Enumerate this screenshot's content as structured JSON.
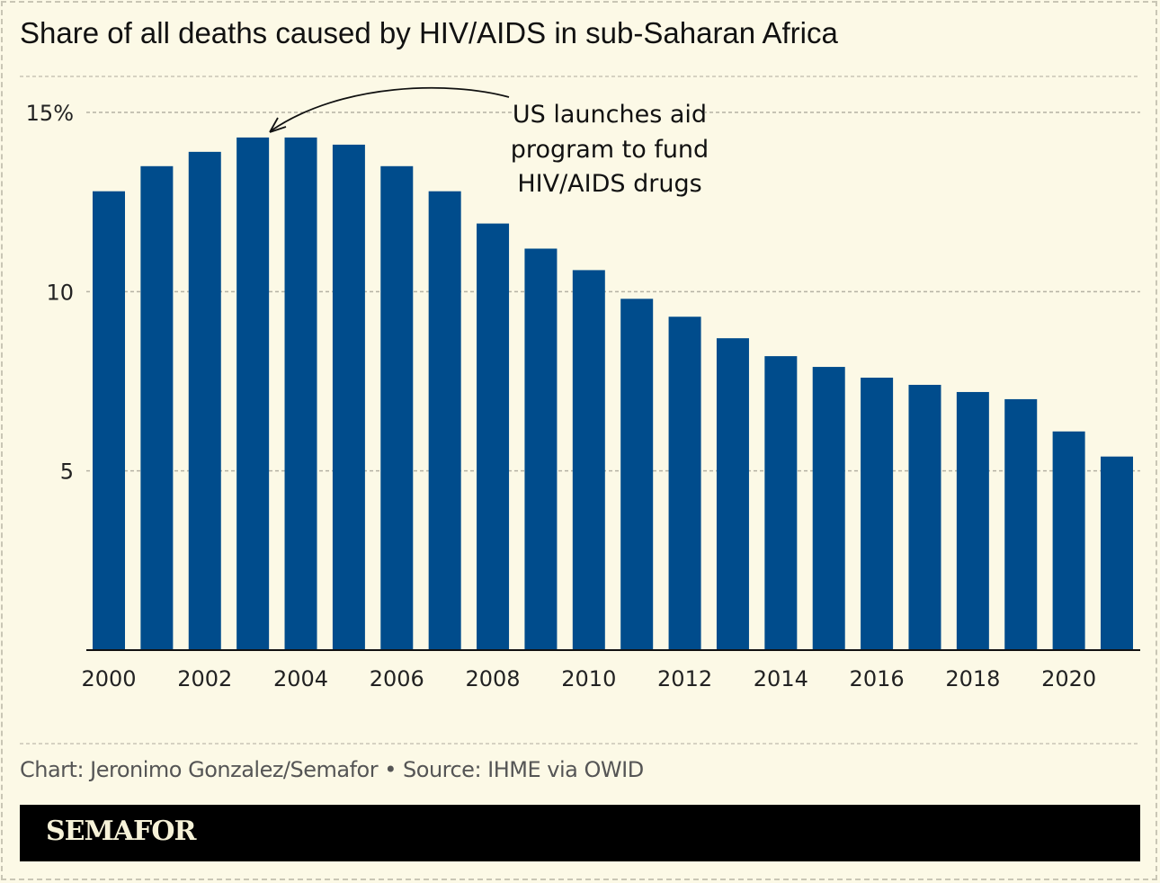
{
  "chart_data": {
    "type": "bar",
    "title": "Share of all deaths caused by HIV/AIDS in sub-Saharan Africa",
    "categories": [
      "2000",
      "2001",
      "2002",
      "2003",
      "2004",
      "2005",
      "2006",
      "2007",
      "2008",
      "2009",
      "2010",
      "2011",
      "2012",
      "2013",
      "2014",
      "2015",
      "2016",
      "2017",
      "2018",
      "2019",
      "2020",
      "2021"
    ],
    "values": [
      12.8,
      13.5,
      13.9,
      14.3,
      14.3,
      14.1,
      13.5,
      12.8,
      11.9,
      11.2,
      10.6,
      9.8,
      9.3,
      8.7,
      8.2,
      7.9,
      7.6,
      7.4,
      7.2,
      7.0,
      6.1,
      5.4
    ],
    "x_tick_labels": [
      "2000",
      "2002",
      "2004",
      "2006",
      "2008",
      "2010",
      "2012",
      "2014",
      "2016",
      "2018",
      "2020"
    ],
    "y_ticks": [
      5,
      10,
      15
    ],
    "y_tick_labels": [
      "5",
      "10",
      "15%"
    ],
    "ylim": [
      0,
      15
    ],
    "grid": "horizontal dashed",
    "bar_color": "#004c8c",
    "annotation": {
      "target": "2003",
      "lines": [
        "US launches aid",
        "program to fund",
        "HIV/AIDS drugs"
      ]
    }
  },
  "source": "Chart: Jeronimo Gonzalez/Semafor • Source: IHME via OWID",
  "brand": "SEMAFOR"
}
